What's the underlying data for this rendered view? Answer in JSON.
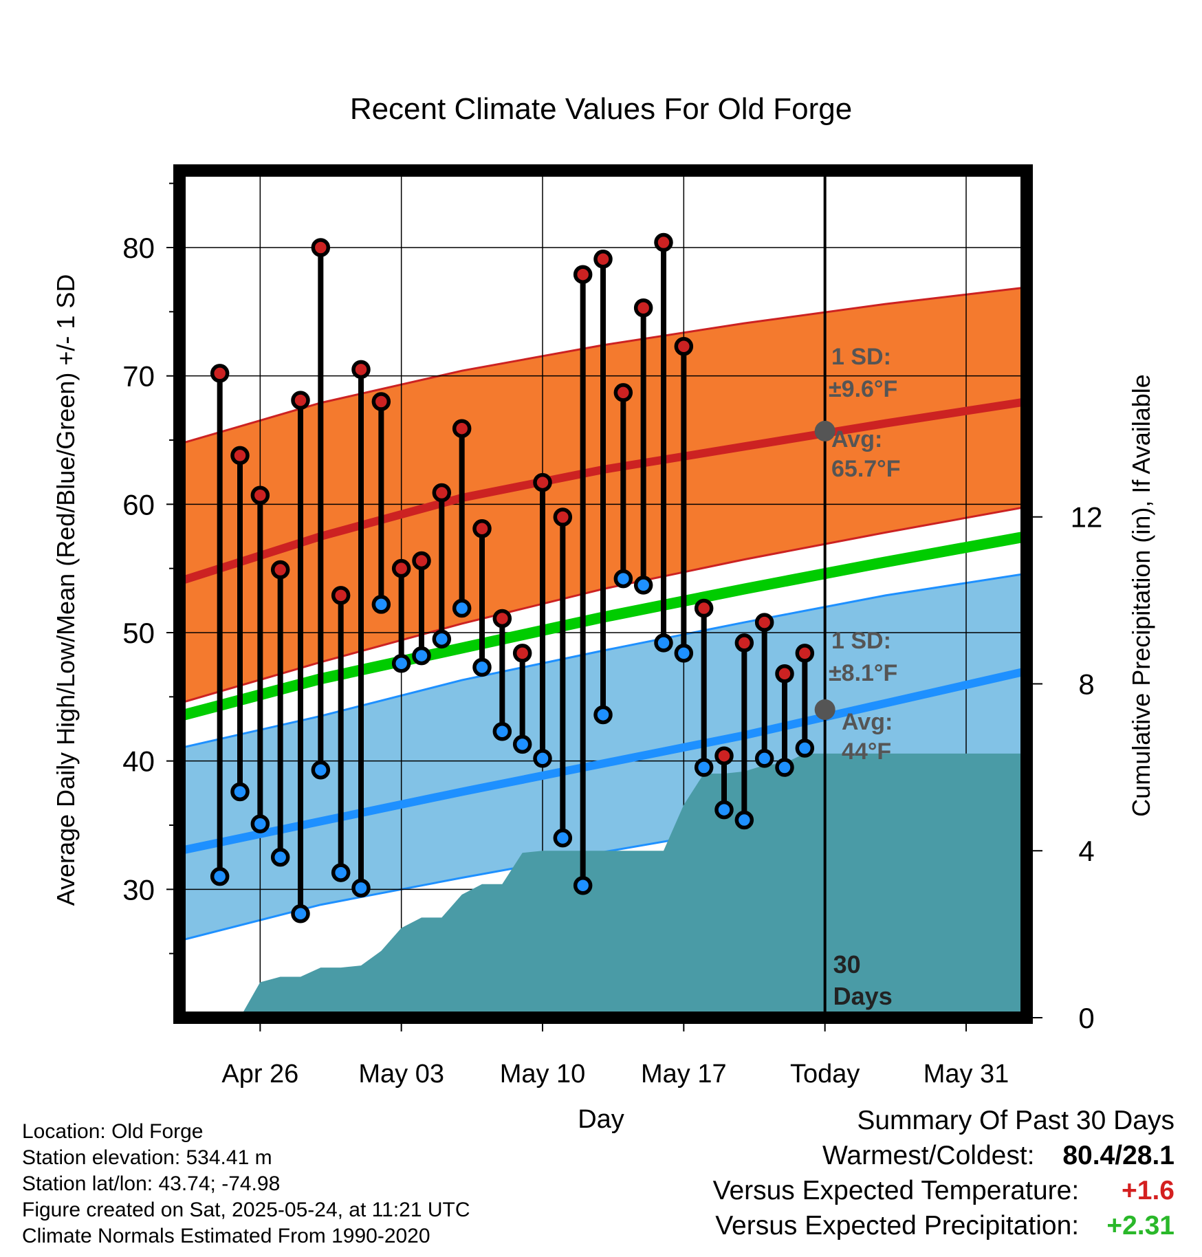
{
  "chart_data": {
    "type": "line",
    "title": "Recent Climate Values For Old Forge",
    "xlabel": "Day",
    "ylabel": "Average Daily High/Low/Mean (Red/Blue/Green) +/- 1 SD",
    "y2label": "Cumulative Precipitation (in), If Available",
    "x_ticks": [
      {
        "date": "2025-04-26",
        "label": "Apr 26"
      },
      {
        "date": "2025-05-03",
        "label": "May 03"
      },
      {
        "date": "2025-05-10",
        "label": "May 10"
      },
      {
        "date": "2025-05-17",
        "label": "May 17"
      },
      {
        "date": "2025-05-24",
        "label": "Today"
      },
      {
        "date": "2025-05-31",
        "label": "May 31"
      }
    ],
    "xlim": [
      "2025-04-22",
      "2025-06-03"
    ],
    "ylim": [
      20,
      86
    ],
    "y_ticks": [
      30,
      40,
      50,
      60,
      70,
      80
    ],
    "y2lim": [
      0,
      20.3
    ],
    "y2_ticks": [
      0,
      4,
      8,
      12
    ],
    "grid": true,
    "today_date": "2025-05-24",
    "days_label": "30\nDays",
    "normals": {
      "x": [
        "2025-04-22",
        "2025-04-29",
        "2025-05-06",
        "2025-05-13",
        "2025-05-20",
        "2025-05-27",
        "2025-06-03"
      ],
      "avg_high": [
        54.0,
        57.5,
        60.5,
        62.7,
        64.5,
        66.3,
        68.0
      ],
      "avg_high_upper": [
        64.7,
        67.9,
        70.4,
        72.4,
        74.1,
        75.6,
        76.9
      ],
      "avg_high_lower": [
        44.5,
        47.7,
        50.7,
        53.4,
        55.7,
        57.8,
        59.8
      ],
      "avg_mean": [
        43.5,
        46.4,
        48.8,
        51.2,
        53.4,
        55.5,
        57.5
      ],
      "avg_low": [
        33.0,
        35.3,
        37.6,
        39.8,
        42.0,
        44.5,
        47.0
      ],
      "avg_low_upper": [
        41.0,
        43.5,
        46.3,
        48.6,
        50.8,
        52.9,
        54.6
      ],
      "avg_low_lower": [
        26.0,
        28.8,
        30.9,
        32.9,
        34.8,
        37.3,
        40.0
      ]
    },
    "series": [
      {
        "name": "Daily High",
        "color": "#cc2222",
        "x": [
          "2025-04-24",
          "2025-04-25",
          "2025-04-26",
          "2025-04-27",
          "2025-04-28",
          "2025-04-29",
          "2025-04-30",
          "2025-05-01",
          "2025-05-02",
          "2025-05-03",
          "2025-05-04",
          "2025-05-05",
          "2025-05-06",
          "2025-05-07",
          "2025-05-08",
          "2025-05-09",
          "2025-05-10",
          "2025-05-11",
          "2025-05-12",
          "2025-05-13",
          "2025-05-14",
          "2025-05-15",
          "2025-05-16",
          "2025-05-17",
          "2025-05-18",
          "2025-05-19",
          "2025-05-20",
          "2025-05-21",
          "2025-05-22",
          "2025-05-23"
        ],
        "values": [
          70.2,
          63.8,
          60.7,
          54.9,
          68.1,
          80.0,
          52.9,
          70.5,
          68.0,
          55.0,
          55.6,
          60.9,
          65.9,
          58.1,
          51.1,
          48.4,
          61.7,
          59.0,
          77.9,
          79.1,
          68.7,
          75.3,
          80.4,
          72.3,
          51.9,
          40.4,
          49.2,
          50.8,
          46.8,
          48.4
        ]
      },
      {
        "name": "Daily Low",
        "color": "#1e90ff",
        "x": [
          "2025-04-24",
          "2025-04-25",
          "2025-04-26",
          "2025-04-27",
          "2025-04-28",
          "2025-04-29",
          "2025-04-30",
          "2025-05-01",
          "2025-05-02",
          "2025-05-03",
          "2025-05-04",
          "2025-05-05",
          "2025-05-06",
          "2025-05-07",
          "2025-05-08",
          "2025-05-09",
          "2025-05-10",
          "2025-05-11",
          "2025-05-12",
          "2025-05-13",
          "2025-05-14",
          "2025-05-15",
          "2025-05-16",
          "2025-05-17",
          "2025-05-18",
          "2025-05-19",
          "2025-05-20",
          "2025-05-21",
          "2025-05-22",
          "2025-05-23"
        ],
        "values": [
          31.0,
          37.6,
          35.1,
          32.5,
          28.1,
          39.3,
          31.3,
          30.1,
          52.2,
          47.6,
          48.2,
          49.5,
          51.9,
          47.3,
          42.3,
          41.3,
          40.2,
          34.0,
          30.3,
          43.6,
          54.2,
          53.7,
          49.2,
          48.4,
          39.5,
          36.2,
          35.4,
          40.2,
          39.5,
          41.0
        ]
      },
      {
        "name": "Cumulative Precipitation",
        "color": "#4a9ba6",
        "x": [
          "2025-04-24",
          "2025-04-25",
          "2025-04-26",
          "2025-04-27",
          "2025-04-28",
          "2025-04-29",
          "2025-04-30",
          "2025-05-01",
          "2025-05-02",
          "2025-05-03",
          "2025-05-04",
          "2025-05-05",
          "2025-05-06",
          "2025-05-07",
          "2025-05-08",
          "2025-05-09",
          "2025-05-10",
          "2025-05-11",
          "2025-05-12",
          "2025-05-13",
          "2025-05-14",
          "2025-05-15",
          "2025-05-16",
          "2025-05-17",
          "2025-05-18",
          "2025-05-19",
          "2025-05-20",
          "2025-05-21",
          "2025-05-22",
          "2025-05-23",
          "2025-05-24"
        ],
        "values": [
          0.0,
          0.0,
          0.85,
          0.98,
          0.98,
          1.2,
          1.2,
          1.25,
          1.6,
          2.15,
          2.4,
          2.4,
          2.95,
          3.2,
          3.2,
          3.95,
          4.0,
          4.0,
          4.0,
          4.0,
          4.0,
          4.0,
          4.0,
          5.1,
          5.85,
          5.85,
          5.9,
          6.05,
          6.1,
          6.33,
          6.33
        ]
      }
    ],
    "annotations": {
      "high_sd_label": "1 SD:",
      "high_sd_value": "±9.6°F",
      "high_avg_label": "Avg:",
      "high_avg_value": "65.7°F",
      "low_sd_label": "1 SD:",
      "low_sd_value": "±8.1°F",
      "low_avg_label": "Avg:",
      "low_avg_value": "44°F",
      "today_high_avg": 65.7,
      "today_low_avg": 44.0
    },
    "colors": {
      "high_band": "#f47a2e",
      "high_line": "#cc2222",
      "low_band": "#82c2e6",
      "low_line": "#1e90ff",
      "mean_line": "#00cc00",
      "precip": "#4a9ba6",
      "annotation": "#555555"
    }
  },
  "metadata": {
    "location": "Location: Old Forge",
    "elevation": "Station elevation: 534.41 m",
    "latlon": "Station lat/lon: 43.74; -74.98",
    "created": "Figure created on Sat, 2025-05-24, at 11:21 UTC",
    "normals": "Climate Normals Estimated From 1990-2020"
  },
  "summary": {
    "title": "Summary Of Past 30 Days",
    "warmest_coldest_label": "Warmest/Coldest:",
    "warmest_coldest_value": "80.4/28.1",
    "temp_label": "Versus Expected Temperature:",
    "temp_value": "+1.6",
    "temp_color": "#d42020",
    "precip_label": "Versus Expected Precipitation:",
    "precip_value": "+2.31",
    "precip_color": "#2ab82a"
  }
}
